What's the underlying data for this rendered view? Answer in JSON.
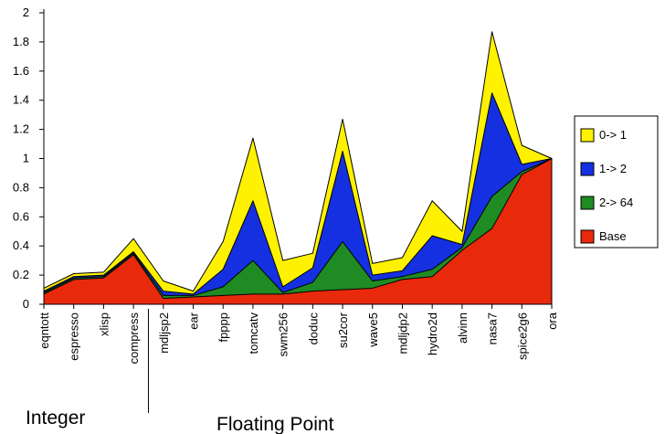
{
  "chart_data": {
    "type": "area",
    "stacked": true,
    "title": "",
    "xlabel": "",
    "ylabel": "",
    "ylim": [
      0,
      2
    ],
    "yticks": [
      "0",
      "0.2",
      "0.4",
      "0.6",
      "0.8",
      "1",
      "1.2",
      "1.4",
      "1.6",
      "1.8",
      "2"
    ],
    "grid": false,
    "legend_position": "right",
    "categories": [
      "eqntott",
      "espresso",
      "xlisp",
      "compress",
      "mdljsp2",
      "ear",
      "fpppp",
      "tomcatv",
      "swm256",
      "doduc",
      "su2cor",
      "wave5",
      "mdljdp2",
      "hydro2d",
      "alvinn",
      "nasa7",
      "spice2g6",
      "ora"
    ],
    "groups": [
      {
        "label": "Integer",
        "from": "eqntott",
        "to": "compress"
      },
      {
        "label": "Floating Point",
        "from": "mdljsp2",
        "to": "ora"
      }
    ],
    "series": [
      {
        "name": "Base",
        "color": "#e8290b",
        "values": [
          0.07,
          0.17,
          0.18,
          0.34,
          0.04,
          0.05,
          0.06,
          0.07,
          0.07,
          0.09,
          0.1,
          0.11,
          0.17,
          0.19,
          0.37,
          0.52,
          0.89,
          1.0
        ]
      },
      {
        "name": "2-> 64",
        "color": "#1e8b23",
        "values": [
          0.08,
          0.18,
          0.19,
          0.35,
          0.06,
          0.06,
          0.12,
          0.3,
          0.08,
          0.15,
          0.43,
          0.16,
          0.19,
          0.24,
          0.39,
          0.74,
          0.91,
          1.0
        ]
      },
      {
        "name": "1-> 2",
        "color": "#1530e0",
        "values": [
          0.09,
          0.19,
          0.2,
          0.36,
          0.09,
          0.07,
          0.24,
          0.71,
          0.12,
          0.25,
          1.05,
          0.2,
          0.23,
          0.47,
          0.41,
          1.45,
          0.96,
          1.0
        ]
      },
      {
        "name": "0-> 1",
        "color": "#fff200",
        "values": [
          0.11,
          0.21,
          0.22,
          0.45,
          0.16,
          0.09,
          0.43,
          1.14,
          0.3,
          0.35,
          1.27,
          0.28,
          0.32,
          0.71,
          0.5,
          1.87,
          1.09,
          1.0
        ]
      }
    ],
    "legend_order": [
      "0-> 1",
      "1-> 2",
      "2-> 64",
      "Base"
    ]
  }
}
